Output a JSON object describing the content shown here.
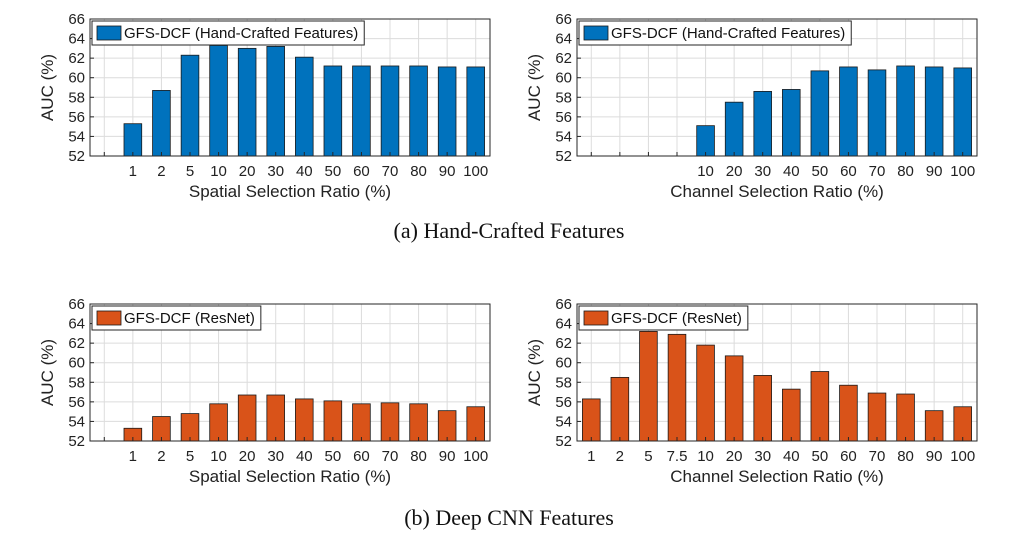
{
  "captions": {
    "a": "(a) Hand-Crafted Features",
    "b": "(b) Deep CNN Features"
  },
  "chart_data": [
    {
      "type": "bar",
      "color": "#0072BD",
      "legend": "GFS-DCF (Hand-Crafted Features)",
      "xlabel": "Spatial Selection Ratio (%)",
      "ylabel": "AUC (%)",
      "ylim": [
        52,
        66
      ],
      "yticks": [
        52,
        54,
        56,
        58,
        60,
        62,
        64,
        66
      ],
      "grid": true,
      "legend_position": "top-left",
      "categories": [
        "",
        "1",
        "2",
        "5",
        "10",
        "20",
        "30",
        "40",
        "50",
        "60",
        "70",
        "80",
        "90",
        "100"
      ],
      "values": [
        null,
        55.3,
        58.7,
        62.3,
        63.3,
        63.0,
        63.2,
        62.1,
        61.2,
        61.2,
        61.2,
        61.2,
        61.1,
        61.1
      ]
    },
    {
      "type": "bar",
      "color": "#0072BD",
      "legend": "GFS-DCF (Hand-Crafted Features)",
      "xlabel": "Channel Selection Ratio (%)",
      "ylabel": "AUC (%)",
      "ylim": [
        52,
        66
      ],
      "yticks": [
        52,
        54,
        56,
        58,
        60,
        62,
        64,
        66
      ],
      "grid": true,
      "legend_position": "top-left",
      "categories": [
        "",
        "",
        "",
        "",
        "10",
        "20",
        "30",
        "40",
        "50",
        "60",
        "70",
        "80",
        "90",
        "100"
      ],
      "values": [
        null,
        null,
        null,
        null,
        55.1,
        57.5,
        58.6,
        58.8,
        60.7,
        61.1,
        60.8,
        61.2,
        61.1,
        61.0
      ]
    },
    {
      "type": "bar",
      "color": "#D95319",
      "legend": "GFS-DCF (ResNet)",
      "xlabel": "Spatial Selection Ratio (%)",
      "ylabel": "AUC (%)",
      "ylim": [
        52,
        66
      ],
      "yticks": [
        52,
        54,
        56,
        58,
        60,
        62,
        64,
        66
      ],
      "grid": true,
      "legend_position": "top-left",
      "categories": [
        "",
        "1",
        "2",
        "5",
        "10",
        "20",
        "30",
        "40",
        "50",
        "60",
        "70",
        "80",
        "90",
        "100"
      ],
      "values": [
        null,
        53.3,
        54.5,
        54.8,
        55.8,
        56.7,
        56.7,
        56.3,
        56.1,
        55.8,
        55.9,
        55.8,
        55.1,
        55.5
      ]
    },
    {
      "type": "bar",
      "color": "#D95319",
      "legend": "GFS-DCF (ResNet)",
      "xlabel": "Channel Selection Ratio (%)",
      "ylabel": "AUC (%)",
      "ylim": [
        52,
        66
      ],
      "yticks": [
        52,
        54,
        56,
        58,
        60,
        62,
        64,
        66
      ],
      "grid": true,
      "legend_position": "top-left",
      "categories": [
        "1",
        "2",
        "5",
        "7.5",
        "10",
        "20",
        "30",
        "40",
        "50",
        "60",
        "70",
        "80",
        "90",
        "100"
      ],
      "values": [
        56.3,
        58.5,
        63.2,
        62.9,
        61.8,
        60.7,
        58.7,
        57.3,
        59.1,
        57.7,
        56.9,
        56.8,
        55.1,
        55.5
      ]
    }
  ]
}
